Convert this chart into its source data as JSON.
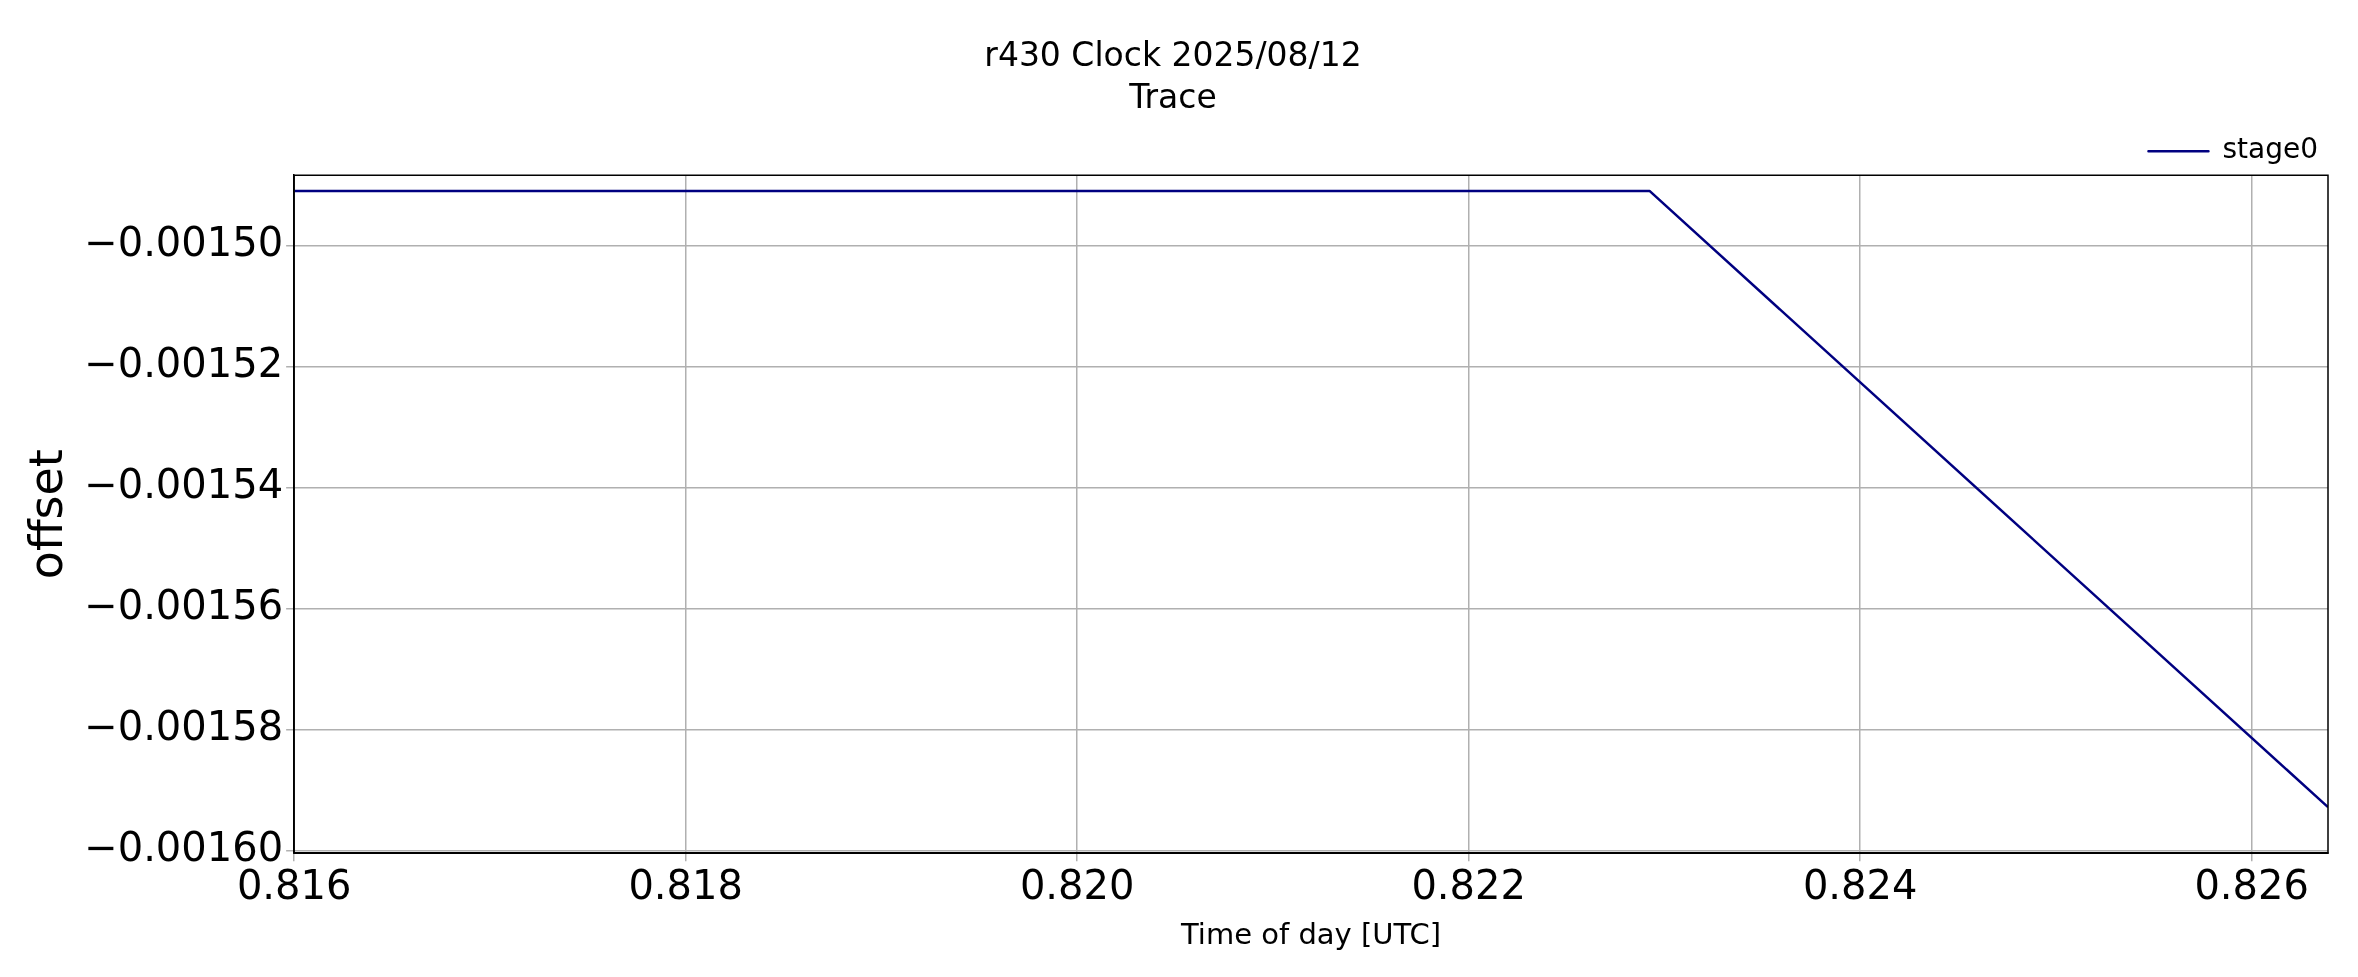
{
  "chart_data": {
    "type": "line",
    "title": "r430 Clock 2025/08/12",
    "subtitle": "Trace",
    "xlabel": "Time of day [UTC]",
    "ylabel": "offset",
    "series": [
      {
        "name": "stage0",
        "color": "#000080",
        "x": [
          0.816,
          0.822924,
          0.82639
        ],
        "values": [
          -0.001491,
          -0.001491,
          -0.0015928
        ]
      }
    ],
    "xlim": [
      0.816,
      0.82639
    ],
    "ylim": [
      -0.0016004,
      -0.0014884
    ],
    "xticks": [
      {
        "value": 0.816,
        "label": "0.816"
      },
      {
        "value": 0.818,
        "label": "0.818"
      },
      {
        "value": 0.82,
        "label": "0.820"
      },
      {
        "value": 0.822,
        "label": "0.822"
      },
      {
        "value": 0.824,
        "label": "0.824"
      },
      {
        "value": 0.826,
        "label": "0.826"
      }
    ],
    "yticks": [
      {
        "value": -0.0015,
        "label": "−0.00150"
      },
      {
        "value": -0.00152,
        "label": "−0.00152"
      },
      {
        "value": -0.00154,
        "label": "−0.00154"
      },
      {
        "value": -0.00156,
        "label": "−0.00156"
      },
      {
        "value": -0.00158,
        "label": "−0.00158"
      },
      {
        "value": -0.0016,
        "label": "−0.00160"
      }
    ],
    "grid": true,
    "legend": "top right",
    "marker": "none",
    "line_style": "solid"
  }
}
